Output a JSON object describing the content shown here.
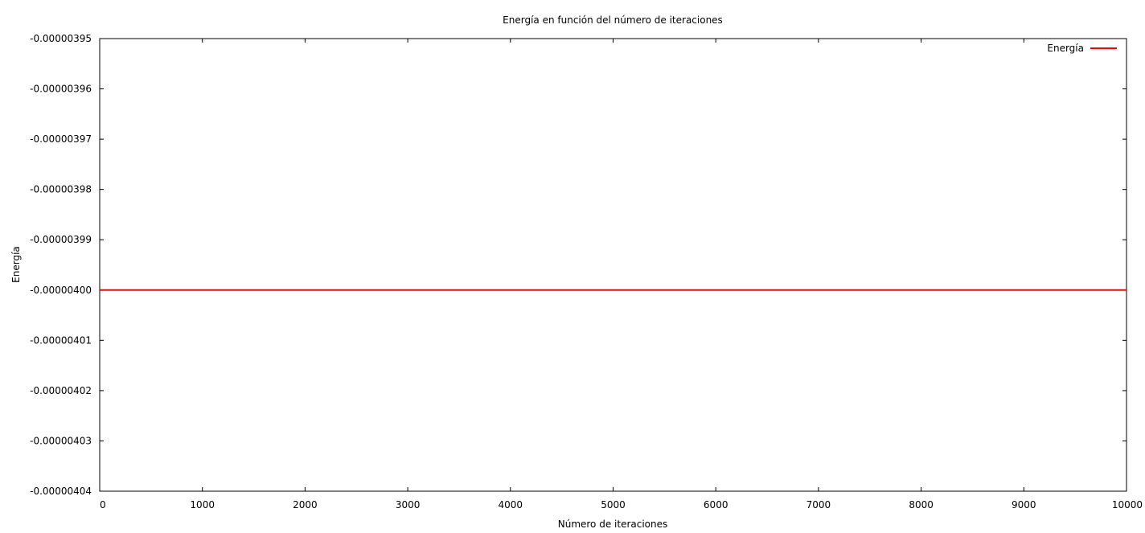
{
  "chart_data": {
    "type": "line",
    "title": "Energía en función del número de iteraciones",
    "xlabel": "Número de iteraciones",
    "ylabel": "Energía",
    "xlim": [
      0,
      10000
    ],
    "ylim": [
      -4.04e-06,
      -3.95e-06
    ],
    "x_ticks": [
      0,
      1000,
      2000,
      3000,
      4000,
      5000,
      6000,
      7000,
      8000,
      9000,
      10000
    ],
    "x_tick_labels": [
      "0",
      "1000",
      "2000",
      "3000",
      "4000",
      "5000",
      "6000",
      "7000",
      "8000",
      "9000",
      "10000"
    ],
    "y_ticks": [
      -3.95e-06,
      -3.96e-06,
      -3.97e-06,
      -3.98e-06,
      -3.99e-06,
      -4e-06,
      -4.01e-06,
      -4.02e-06,
      -4.03e-06,
      -4.04e-06
    ],
    "y_tick_labels": [
      "-0.00000395",
      "-0.00000396",
      "-0.00000397",
      "-0.00000398",
      "-0.00000399",
      "-0.00000400",
      "-0.00000401",
      "-0.00000402",
      "-0.00000403",
      "-0.00000404"
    ],
    "grid": false,
    "legend_position": "top-right",
    "series": [
      {
        "name": "Energía",
        "color": "#ff0000",
        "x": [
          0,
          10000
        ],
        "y": [
          -4e-06,
          -4e-06
        ]
      }
    ]
  }
}
